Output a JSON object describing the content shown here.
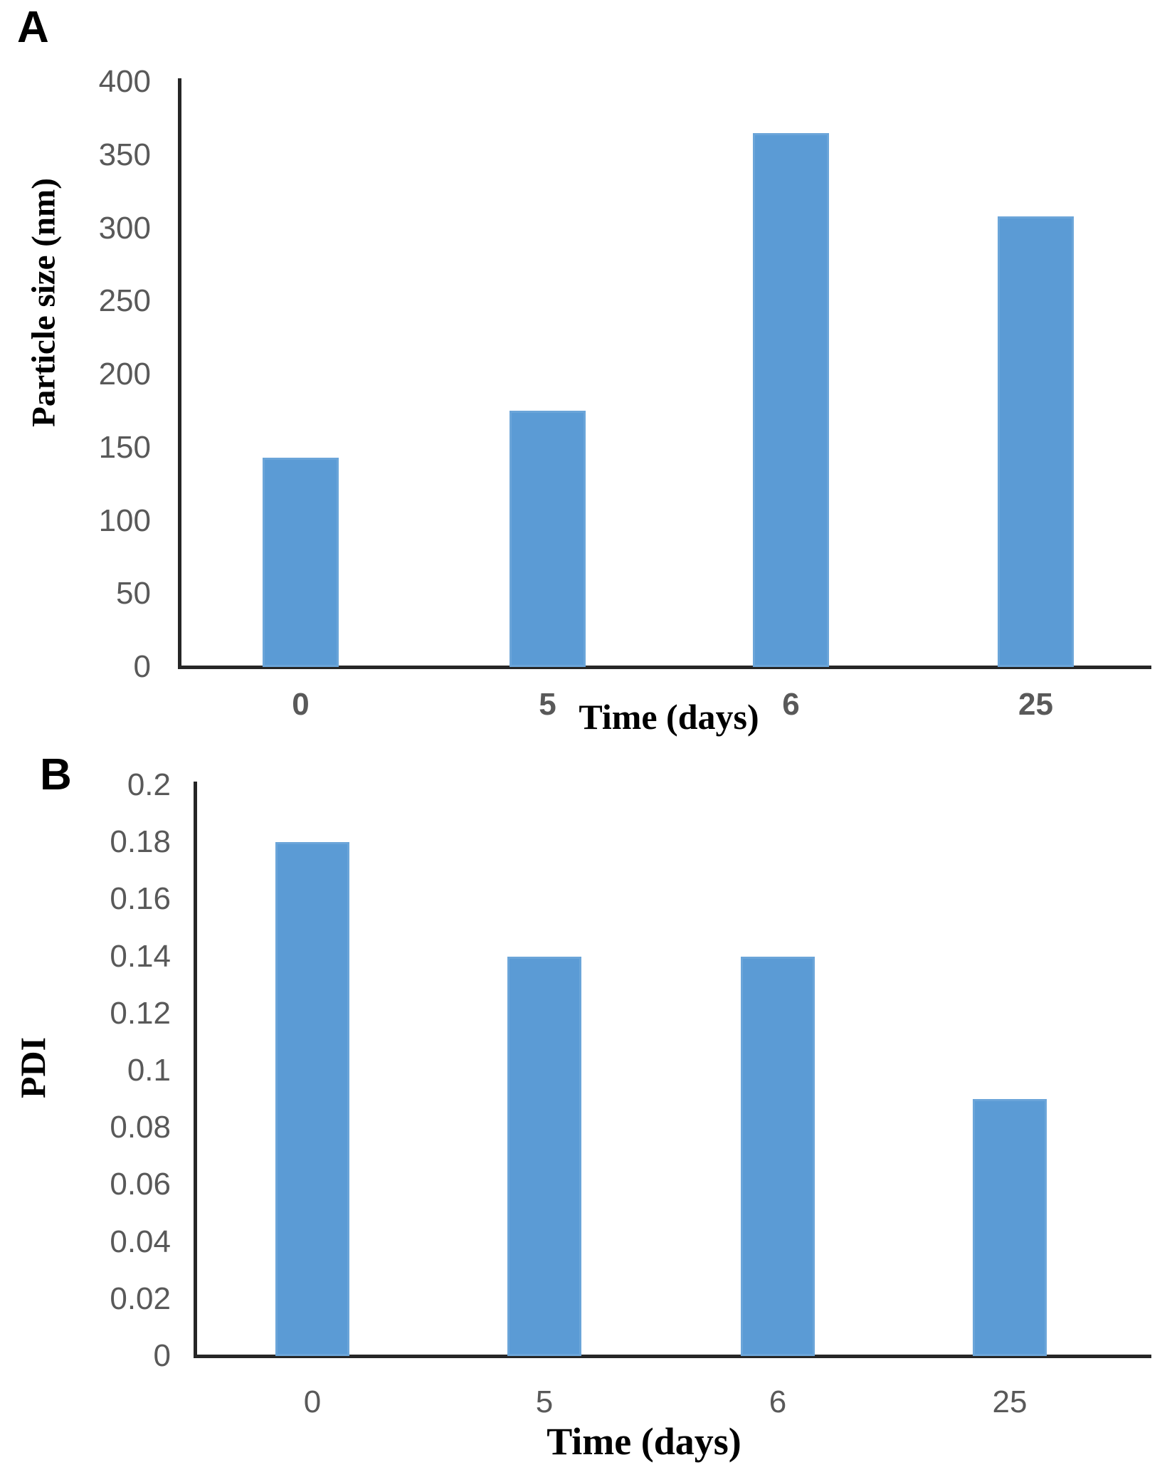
{
  "panel_labels": [
    "A",
    "B"
  ],
  "colors": {
    "bar_fill": "#5B9BD5",
    "bar_edge": "#9DC3E6",
    "axis_line": "#262626",
    "tick_label": "#595959",
    "text": "#000000"
  },
  "chart_data": [
    {
      "type": "bar",
      "panel": "A",
      "title": "",
      "categories": [
        "0",
        "5",
        "6",
        "25"
      ],
      "values": [
        143,
        175,
        365,
        308
      ],
      "xlabel": "Time (days)",
      "ylabel": "Particle size (nm)",
      "ylim": [
        0,
        400
      ],
      "ytick_step": 50,
      "ytick_labels": [
        "400",
        "350",
        "300",
        "250",
        "200",
        "150",
        "100",
        "50",
        "0"
      ],
      "grid": false,
      "legend": null,
      "bar_color": "#5B9BD5"
    },
    {
      "type": "bar",
      "panel": "B",
      "title": "",
      "categories": [
        "0",
        "5",
        "6",
        "25"
      ],
      "values": [
        0.18,
        0.14,
        0.14,
        0.09
      ],
      "xlabel": "Time (days)",
      "ylabel": "PDI",
      "ylim": [
        0,
        0.2
      ],
      "ytick_step": 0.02,
      "ytick_labels": [
        "0.2",
        "0.18",
        "0.16",
        "0.14",
        "0.12",
        "0.1",
        "0.08",
        "0.06",
        "0.04",
        "0.02",
        "0"
      ],
      "grid": false,
      "legend": null,
      "bar_color": "#5B9BD5"
    }
  ]
}
